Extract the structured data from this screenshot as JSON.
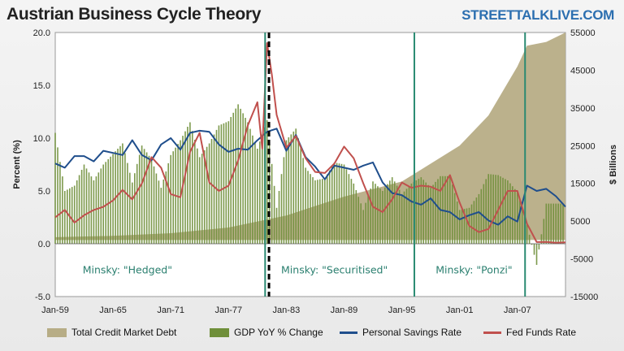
{
  "header": {
    "title": "Austrian Business Cycle Theory",
    "brand": "STREETTALKLIVE.COM"
  },
  "colors": {
    "credit": "#b7ad86",
    "gdp": "#6f8f3a",
    "savings": "#1f4e8c",
    "fed": "#c0504d",
    "regime_line": "#2a8a72",
    "dash_line": "#000000"
  },
  "legend": [
    {
      "label": "Total Credit Market Debt",
      "kind": "area",
      "color_key": "credit"
    },
    {
      "label": "GDP YoY % Change",
      "kind": "bar",
      "color_key": "gdp"
    },
    {
      "label": "Personal Savings Rate",
      "kind": "line",
      "color_key": "savings"
    },
    {
      "label": "Fed Funds Rate",
      "kind": "line",
      "color_key": "fed"
    }
  ],
  "chart_data": {
    "type": "bar",
    "title": "Austrian Business Cycle Theory",
    "x_ticks": [
      "Jan-59",
      "Jan-65",
      "Jan-71",
      "Jan-77",
      "Jan-83",
      "Jan-89",
      "Jan-95",
      "Jan-01",
      "Jan-07"
    ],
    "x_range": [
      1959,
      2012
    ],
    "ylabel_left": "Percent (%)",
    "ylabel_right": "$ Billions",
    "ylim_left": [
      -5,
      20
    ],
    "ylim_right": [
      -15000,
      55000
    ],
    "left_ticks": [
      "20.0",
      "15.0",
      "10.0",
      "5.0",
      "0.0",
      "-5.0"
    ],
    "right_ticks": [
      "55000",
      "45000",
      "35000",
      "25000",
      "15000",
      "5000",
      "-5000",
      "-15000"
    ],
    "grid": false,
    "legend_position": "bottom",
    "annotations": [
      {
        "text": "Minsky: \"Hedged\"",
        "x": 1966.5,
        "y": -2.8
      },
      {
        "text": "Minsky: \"Securitised\"",
        "x": 1988.0,
        "y": -2.8
      },
      {
        "text": "Minsky: \"Ponzi\"",
        "x": 2002.5,
        "y": -2.8
      }
    ],
    "regime_lines": [
      1980.8,
      1996.3,
      2007.8
    ],
    "dashed_lines": [
      1981.2
    ],
    "series": [
      {
        "name": "Total Credit Market Debt",
        "type": "area",
        "axis": "right",
        "x": [
          1959,
          1965,
          1971,
          1977,
          1983,
          1989,
          1995,
          2001,
          2004,
          2007,
          2008,
          2010,
          2012
        ],
        "values": [
          750,
          1100,
          1800,
          3300,
          6500,
          11500,
          15500,
          25000,
          33000,
          46000,
          51500,
          52500,
          55000
        ]
      },
      {
        "name": "GDP YoY % Change",
        "type": "bar",
        "axis": "left",
        "x": [
          1959,
          1960,
          1961,
          1962,
          1963,
          1964,
          1965,
          1966,
          1967,
          1968,
          1969,
          1970,
          1971,
          1972,
          1973,
          1974,
          1975,
          1976,
          1977,
          1978,
          1979,
          1980,
          1981,
          1982,
          1983,
          1984,
          1985,
          1986,
          1987,
          1988,
          1989,
          1990,
          1991,
          1992,
          1993,
          1994,
          1995,
          1996,
          1997,
          1998,
          1999,
          2000,
          2001,
          2002,
          2003,
          2004,
          2005,
          2006,
          2007,
          2008,
          2009,
          2010,
          2011
        ],
        "values": [
          10.5,
          5.0,
          5.5,
          7.5,
          6.0,
          7.5,
          8.5,
          9.5,
          5.8,
          9.3,
          8.0,
          5.3,
          8.4,
          9.8,
          11.5,
          8.2,
          9.5,
          11.2,
          11.6,
          13.2,
          11.5,
          9.0,
          11.7,
          3.4,
          9.8,
          10.9,
          7.2,
          6.0,
          6.2,
          7.7,
          7.5,
          5.7,
          3.2,
          5.9,
          5.0,
          6.3,
          4.7,
          5.7,
          6.3,
          5.3,
          6.4,
          6.4,
          3.2,
          3.4,
          4.7,
          6.6,
          6.5,
          6.0,
          4.9,
          1.8,
          -2.0,
          3.8,
          3.8
        ]
      },
      {
        "name": "Personal Savings Rate",
        "type": "line",
        "axis": "left",
        "x": [
          1959,
          1960,
          1961,
          1962,
          1963,
          1964,
          1965,
          1966,
          1967,
          1968,
          1969,
          1970,
          1971,
          1972,
          1973,
          1974,
          1975,
          1976,
          1977,
          1978,
          1979,
          1980,
          1981,
          1982,
          1983,
          1984,
          1985,
          1986,
          1987,
          1988,
          1989,
          1990,
          1991,
          1992,
          1993,
          1994,
          1995,
          1996,
          1997,
          1998,
          1999,
          2000,
          2001,
          2002,
          2003,
          2004,
          2005,
          2006,
          2007,
          2008,
          2009,
          2010,
          2011,
          2012
        ],
        "values": [
          7.6,
          7.2,
          8.3,
          8.3,
          7.8,
          8.8,
          8.6,
          8.4,
          9.8,
          8.4,
          7.9,
          9.4,
          10.0,
          8.9,
          10.5,
          10.7,
          10.6,
          9.4,
          8.7,
          9.0,
          8.9,
          9.8,
          10.6,
          10.9,
          8.8,
          10.3,
          8.2,
          7.3,
          6.1,
          7.4,
          7.2,
          7.0,
          7.4,
          7.7,
          5.8,
          4.8,
          4.6,
          4.0,
          3.7,
          4.3,
          3.2,
          3.0,
          2.3,
          2.7,
          3.0,
          2.2,
          1.8,
          2.6,
          2.1,
          5.5,
          5.0,
          5.2,
          4.5,
          3.5
        ]
      },
      {
        "name": "Fed Funds Rate",
        "type": "line",
        "axis": "left",
        "x": [
          1959,
          1960,
          1961,
          1962,
          1963,
          1964,
          1965,
          1966,
          1967,
          1968,
          1969,
          1970,
          1971,
          1972,
          1973,
          1974,
          1975,
          1976,
          1977,
          1978,
          1979,
          1980,
          1980.5,
          1981,
          1981.5,
          1982,
          1983,
          1984,
          1985,
          1986,
          1987,
          1988,
          1989,
          1990,
          1991,
          1992,
          1993,
          1994,
          1995,
          1996,
          1997,
          1998,
          1999,
          2000,
          2001,
          2002,
          2003,
          2004,
          2005,
          2006,
          2007,
          2008,
          2009,
          2010,
          2011,
          2012
        ],
        "values": [
          2.5,
          3.2,
          2.0,
          2.7,
          3.2,
          3.5,
          4.1,
          5.1,
          4.2,
          5.7,
          8.2,
          7.2,
          4.7,
          4.4,
          8.7,
          10.5,
          5.8,
          5.0,
          5.5,
          7.9,
          11.2,
          13.4,
          9.0,
          19.0,
          16.0,
          12.2,
          9.1,
          10.2,
          8.1,
          6.8,
          6.7,
          7.6,
          9.2,
          8.1,
          5.7,
          3.5,
          3.0,
          4.2,
          5.8,
          5.3,
          5.5,
          5.4,
          5.0,
          6.5,
          3.9,
          1.7,
          1.1,
          1.4,
          3.2,
          5.0,
          5.0,
          1.9,
          0.16,
          0.18,
          0.1,
          0.14
        ]
      }
    ]
  }
}
